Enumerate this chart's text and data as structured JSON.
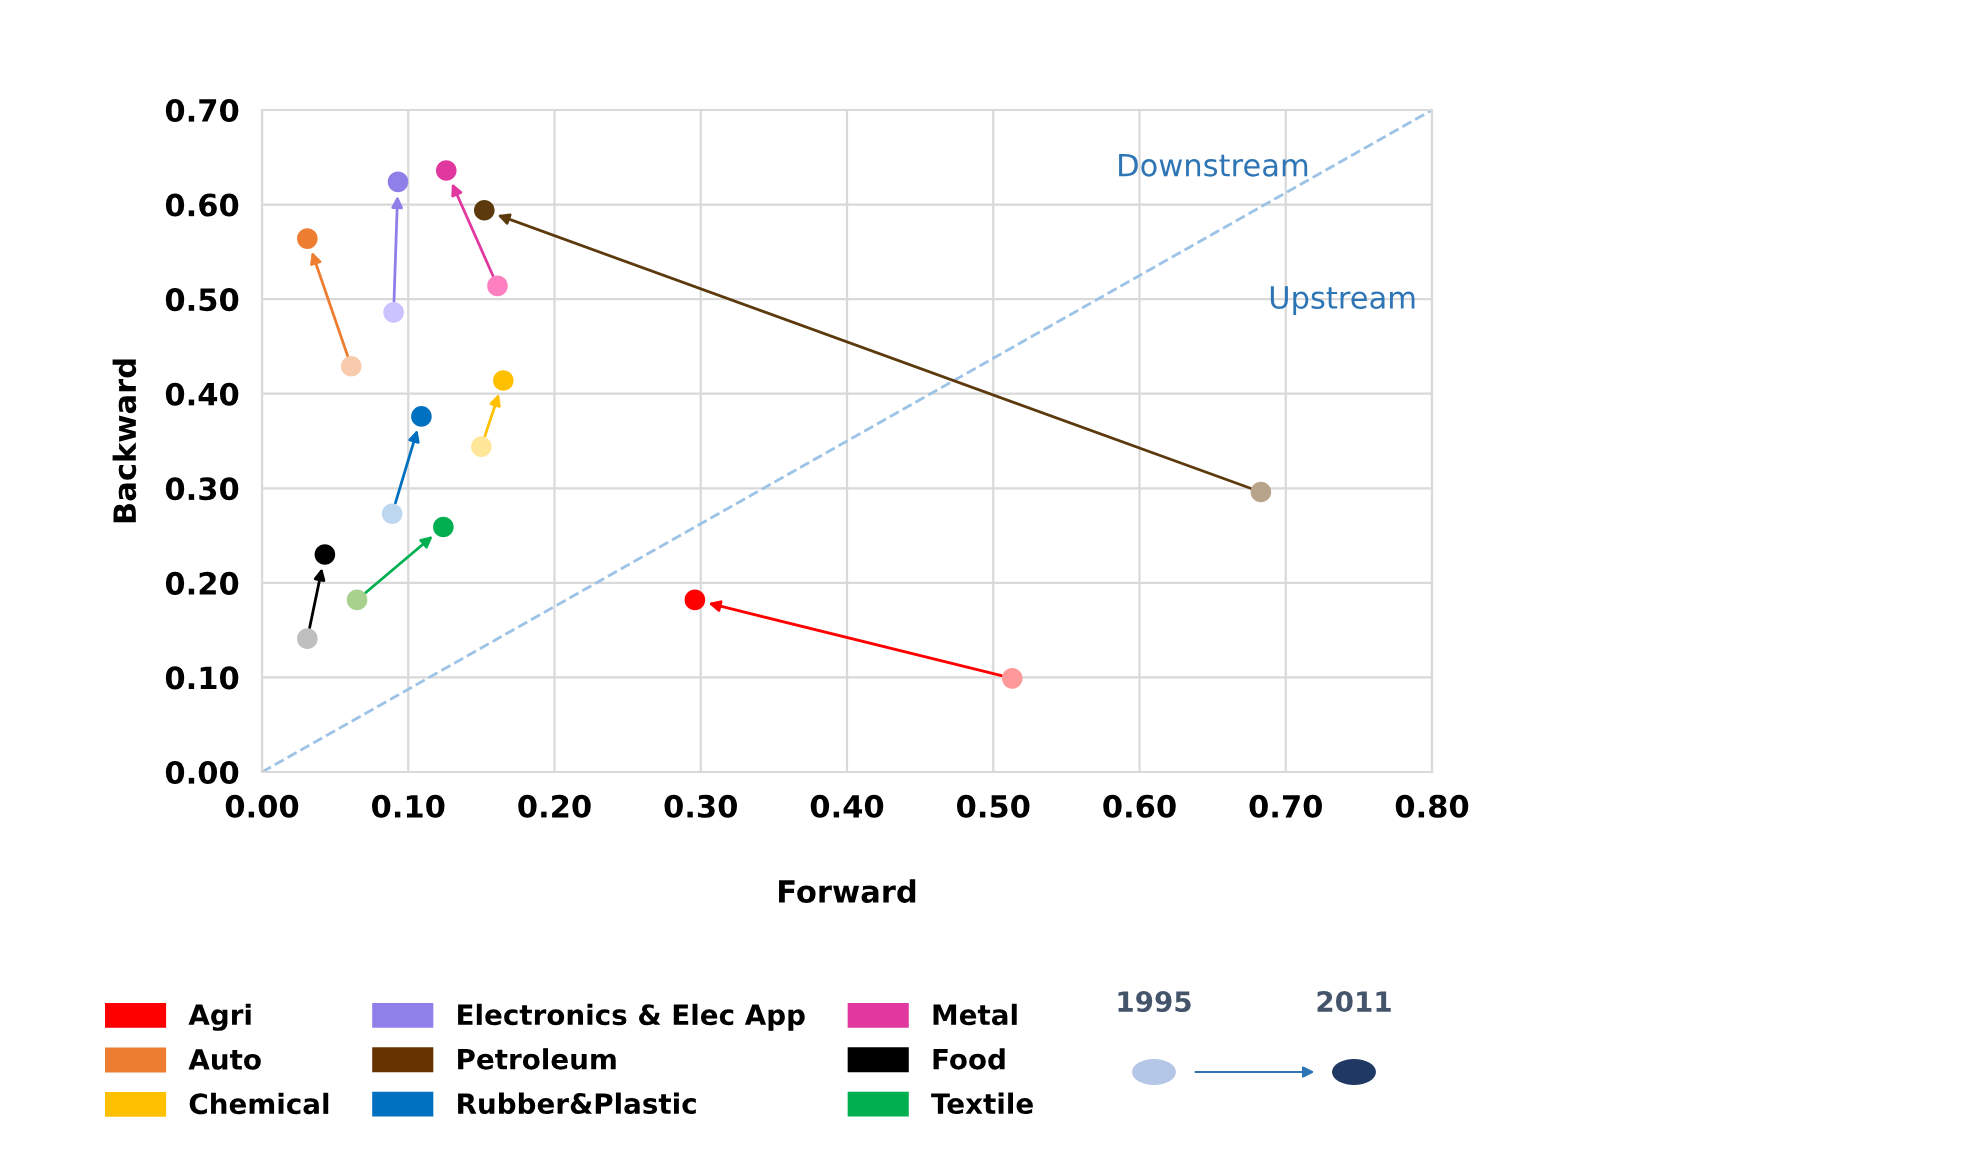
{
  "chart_data": {
    "type": "scatter",
    "xlabel": "Forward",
    "ylabel": "Backward",
    "xlim": [
      0,
      0.8
    ],
    "ylim": [
      0,
      0.7
    ],
    "xticks": [
      {
        "value": 0,
        "label": "0.00"
      },
      {
        "value": 0.1,
        "label": "0.10"
      },
      {
        "value": 0.2,
        "label": "0.20"
      },
      {
        "value": 0.3,
        "label": "0.30"
      },
      {
        "value": 0.4,
        "label": "0.40"
      },
      {
        "value": 0.5,
        "label": "0.50"
      },
      {
        "value": 0.6,
        "label": "0.60"
      },
      {
        "value": 0.7,
        "label": "0.70"
      },
      {
        "value": 0.8,
        "label": "0.80"
      }
    ],
    "yticks": [
      {
        "value": 0,
        "label": "0.00"
      },
      {
        "value": 0.1,
        "label": "0.10"
      },
      {
        "value": 0.2,
        "label": "0.20"
      },
      {
        "value": 0.3,
        "label": "0.30"
      },
      {
        "value": 0.4,
        "label": "0.40"
      },
      {
        "value": 0.5,
        "label": "0.50"
      },
      {
        "value": 0.6,
        "label": "0.60"
      },
      {
        "value": 0.7,
        "label": "0.70"
      }
    ],
    "grid": true,
    "legend": "bottom",
    "marker": "circle",
    "annotations": [
      "Downstream",
      "Upstream",
      "1995",
      "2011"
    ],
    "series": [
      {
        "name": "Agri",
        "color": "#ff0000",
        "x": [
          0.513,
          0.296
        ],
        "values": [
          0.099,
          0.182
        ],
        "colors": [
          "#ff9999",
          "#ff0000"
        ]
      },
      {
        "name": "Auto",
        "color": "#ed7d31",
        "x": [
          0.061,
          0.031
        ],
        "values": [
          0.429,
          0.564
        ],
        "colors": [
          "#f8cbad",
          "#ed7d31"
        ]
      },
      {
        "name": "Chemical",
        "color": "#ffc000",
        "x": [
          0.15,
          0.165
        ],
        "values": [
          0.344,
          0.414
        ],
        "colors": [
          "#ffe699",
          "#ffc000"
        ]
      },
      {
        "name": "Electronics & Elec App",
        "color": "#8f7fe8",
        "x": [
          0.09,
          0.093
        ],
        "values": [
          0.486,
          0.624
        ],
        "colors": [
          "#c9c3ff",
          "#8f7fe8"
        ]
      },
      {
        "name": "Petroleum",
        "color": "#663300",
        "x": [
          0.683,
          0.152
        ],
        "values": [
          0.296,
          0.594
        ],
        "colors": [
          "#b8a48a",
          "#5c3a0e"
        ]
      },
      {
        "name": "Rubber&Plastic",
        "color": "#0070c0",
        "x": [
          0.089,
          0.109
        ],
        "values": [
          0.273,
          0.376
        ],
        "colors": [
          "#bdd7ee",
          "#0070c0"
        ]
      },
      {
        "name": "Metal",
        "color": "#e0389f",
        "x": [
          0.161,
          0.126
        ],
        "values": [
          0.514,
          0.636
        ],
        "colors": [
          "#ff80c0",
          "#e0389f"
        ]
      },
      {
        "name": "Food",
        "color": "#000000",
        "x": [
          0.031,
          0.043
        ],
        "values": [
          0.141,
          0.23
        ],
        "colors": [
          "#bfbfbf",
          "#000000"
        ]
      },
      {
        "name": "Textile",
        "color": "#00b050",
        "x": [
          0.065,
          0.124
        ],
        "values": [
          0.182,
          0.259
        ],
        "colors": [
          "#a9d18e",
          "#00b050"
        ]
      },
      {
        "type": "line",
        "color": "#9dc3e6",
        "line_style": "dashed",
        "marker": "none",
        "x": [
          0,
          0.8
        ],
        "values": [
          0,
          0.7
        ]
      }
    ]
  }
}
